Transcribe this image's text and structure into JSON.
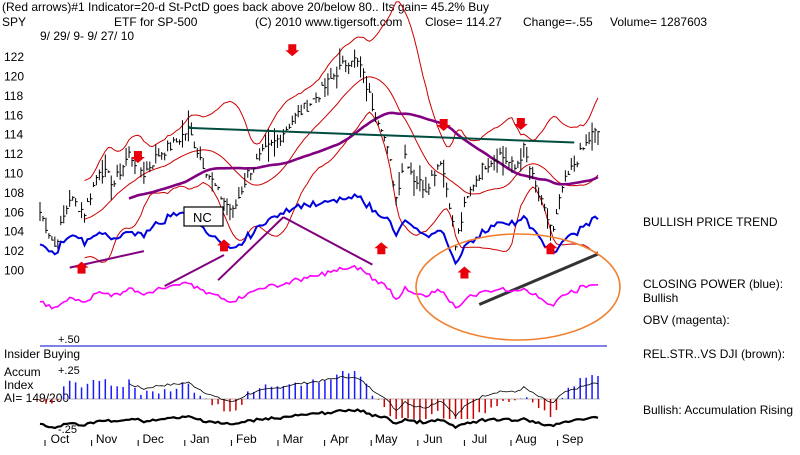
{
  "header": {
    "line1": "(Red arrows)#1 Indicator=20-d St-PctD goes back above 20/below 80.. Its gain= 45.2% Buy",
    "ticker": "SPY",
    "desc": "ETF for SP-500",
    "copyright": "(C) 2010 www.tigersoft.com",
    "close": "Close= 114.27",
    "change": "Change=-.55",
    "volume": "Volume= 1287603",
    "dates": "9/ 29/ 9- 9/ 27/ 10"
  },
  "annotations": {
    "nc": "NC",
    "bullish_trend": "BULLISH PRICE TREND",
    "closing_power": "CLOSING POWER (blue):",
    "closing_power_sub": "Bullish",
    "obv": "OBV (magenta):",
    "relstr": "REL.STR..VS DJI (brown):",
    "accum_rising": "Bullish: Accumulation Rising",
    "insider": "Insider Buying",
    "accum_index": "Accum",
    "accum_index2": "Index",
    "ai_value": "AI= 149/200",
    "plus50": "+.50",
    "plus25": "+.25",
    "minus25": "-.25"
  },
  "colors": {
    "price": "#000000",
    "bands": "#cc0000",
    "ma": "#800080",
    "closing_power": "#0000dd",
    "obv": "#ff00ff",
    "trendline": "#004d40",
    "circle": "#f08030",
    "arrow": "#e8000a",
    "accum_pos": "#1a1aff",
    "accum_neg": "#cc0000"
  },
  "chart_data": {
    "type": "line",
    "title": "SPY ETF for SP-500",
    "ylim": [
      99,
      123
    ],
    "y_ticks": [
      100,
      102,
      104,
      106,
      108,
      110,
      112,
      114,
      116,
      118,
      120,
      122
    ],
    "x_labels": [
      "Oct",
      "Nov",
      "Dec",
      "Jan",
      "Feb",
      "Mar",
      "Apr",
      "May",
      "Jun",
      "Jul",
      "Aug",
      "Sep"
    ],
    "price_points": [
      [
        0,
        106.0
      ],
      [
        5,
        102.5
      ],
      [
        10,
        107.5
      ],
      [
        15,
        106.0
      ],
      [
        20,
        110.5
      ],
      [
        25,
        109.0
      ],
      [
        30,
        112.0
      ],
      [
        35,
        110.0
      ],
      [
        40,
        112.0
      ],
      [
        45,
        113.0
      ],
      [
        50,
        114.5
      ],
      [
        55,
        111.0
      ],
      [
        60,
        108.0
      ],
      [
        65,
        106.0
      ],
      [
        70,
        110.0
      ],
      [
        75,
        112.0
      ],
      [
        80,
        113.5
      ],
      [
        85,
        115.5
      ],
      [
        90,
        117.0
      ],
      [
        95,
        118.5
      ],
      [
        100,
        120.5
      ],
      [
        105,
        122.0
      ],
      [
        108,
        121.0
      ],
      [
        112,
        117.0
      ],
      [
        115,
        115.0
      ],
      [
        118,
        111.0
      ],
      [
        120,
        107.5
      ],
      [
        123,
        112.0
      ],
      [
        126,
        109.5
      ],
      [
        130,
        108.5
      ],
      [
        135,
        111.5
      ],
      [
        138,
        107.0
      ],
      [
        140,
        102.5
      ],
      [
        143,
        106.5
      ],
      [
        146,
        109.0
      ],
      [
        150,
        111.0
      ],
      [
        155,
        112.0
      ],
      [
        160,
        110.5
      ],
      [
        163,
        112.5
      ],
      [
        167,
        108.5
      ],
      [
        170,
        106.0
      ],
      [
        173,
        104.0
      ],
      [
        176,
        108.5
      ],
      [
        180,
        111.0
      ],
      [
        183,
        112.5
      ],
      [
        186,
        114.0
      ],
      [
        188,
        114.3
      ]
    ]
  }
}
